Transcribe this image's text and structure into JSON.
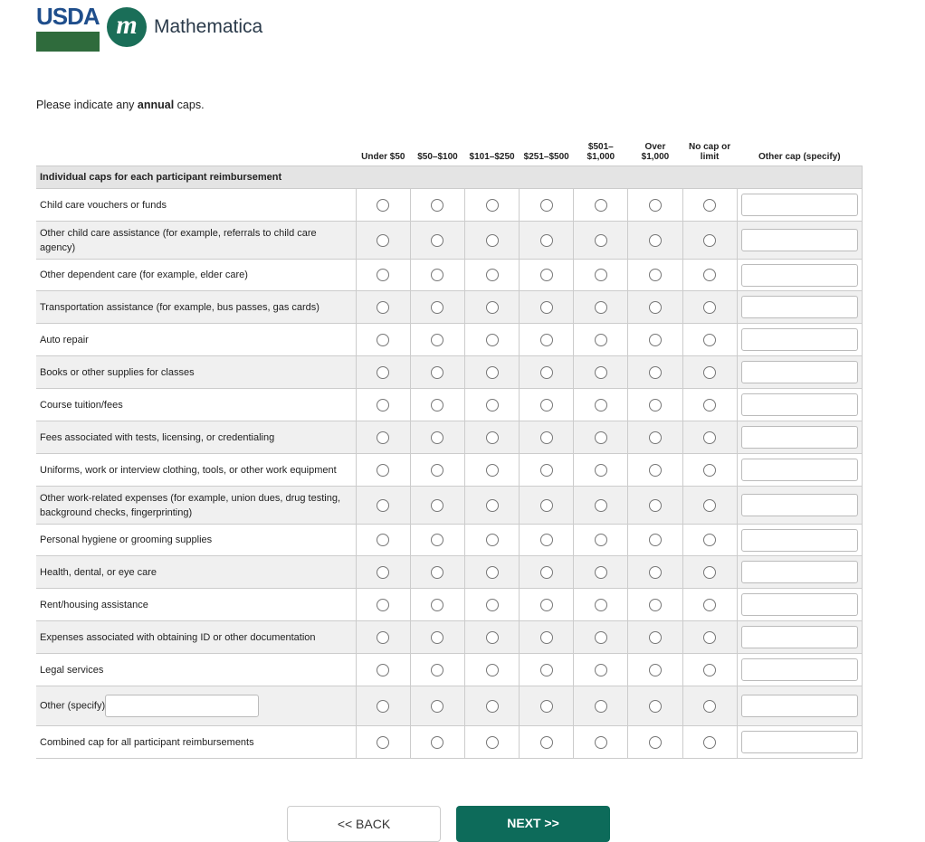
{
  "logos": {
    "usda": "USDA",
    "mathematica": "Mathematica"
  },
  "prompt": {
    "before": "Please indicate any ",
    "bold": "annual",
    "after": " caps."
  },
  "columns": [
    "Under $50",
    "$50–$100",
    "$101–$250",
    "$251–$500",
    "$501–\n$1,000",
    "Over\n$1,000",
    "No cap or\nlimit",
    "Other cap (specify)"
  ],
  "section": "Individual caps for each participant reimbursement",
  "rows": [
    {
      "label": "Child care vouchers or funds"
    },
    {
      "label": "Other child care assistance (for example, referrals to child care agency)"
    },
    {
      "label": "Other dependent care (for example, elder care)"
    },
    {
      "label": "Transportation assistance (for example, bus passes, gas cards)"
    },
    {
      "label": "Auto repair"
    },
    {
      "label": "Books or other supplies for classes"
    },
    {
      "label": "Course tuition/fees"
    },
    {
      "label": "Fees associated with tests, licensing, or credentialing"
    },
    {
      "label": "Uniforms, work or interview clothing, tools, or other work equipment"
    },
    {
      "label": "Other work-related expenses (for example, union dues, drug testing, background checks, fingerprinting)"
    },
    {
      "label": "Personal hygiene or grooming supplies"
    },
    {
      "label": "Health, dental, or eye care"
    },
    {
      "label": "Rent/housing assistance"
    },
    {
      "label": "Expenses associated with obtaining ID or other documentation"
    },
    {
      "label": "Legal services"
    },
    {
      "label": "Other (specify)",
      "has_specify": true
    },
    {
      "label": "Combined cap for all participant reimbursements"
    }
  ],
  "buttons": {
    "back": "<< BACK",
    "next": "NEXT >>"
  },
  "colors": {
    "accent": "#0d6b5a",
    "alt_row": "#f0f0f0",
    "section_bg": "#e4e4e4"
  }
}
